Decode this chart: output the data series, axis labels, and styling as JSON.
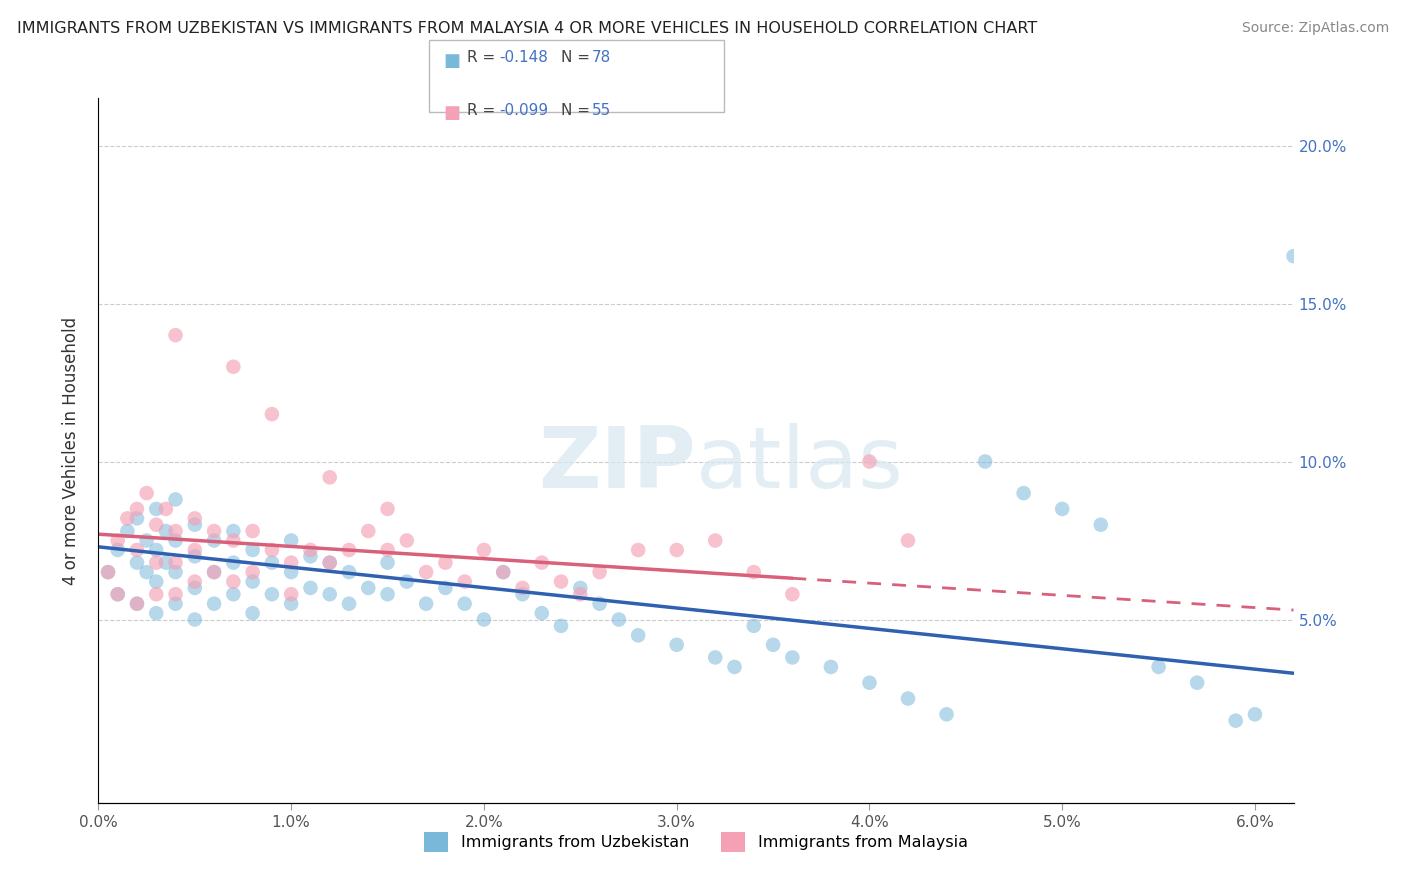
{
  "title": "IMMIGRANTS FROM UZBEKISTAN VS IMMIGRANTS FROM MALAYSIA 4 OR MORE VEHICLES IN HOUSEHOLD CORRELATION CHART",
  "source": "Source: ZipAtlas.com",
  "ylabel": "4 or more Vehicles in Household",
  "uzbekistan_color": "#7ab8d9",
  "malaysia_color": "#f4a0b5",
  "xmin": 0.0,
  "xmax": 0.062,
  "ymin": -0.008,
  "ymax": 0.215,
  "gridline_y": [
    0.05,
    0.1,
    0.15,
    0.2
  ],
  "ytick_labels": [
    "5.0%",
    "10.0%",
    "15.0%",
    "20.0%"
  ],
  "xtick_values": [
    0.0,
    0.01,
    0.02,
    0.03,
    0.04,
    0.05,
    0.06
  ],
  "xtick_labels": [
    "0.0%",
    "1.0%",
    "2.0%",
    "3.0%",
    "4.0%",
    "5.0%",
    "6.0%"
  ],
  "watermark": "ZIPatlas",
  "trendline_uzbekistan_x0": 0.0,
  "trendline_uzbekistan_y0": 0.073,
  "trendline_uzbekistan_x1": 0.062,
  "trendline_uzbekistan_y1": 0.033,
  "trendline_malaysia_x0": 0.0,
  "trendline_malaysia_y0": 0.077,
  "trendline_malaysia_x1": 0.062,
  "trendline_malaysia_y1": 0.053,
  "trendline_malaysia_solid_end": 0.036,
  "uzbekistan_x": [
    0.0005,
    0.001,
    0.001,
    0.0015,
    0.002,
    0.002,
    0.002,
    0.0025,
    0.0025,
    0.003,
    0.003,
    0.003,
    0.003,
    0.0035,
    0.0035,
    0.004,
    0.004,
    0.004,
    0.004,
    0.005,
    0.005,
    0.005,
    0.005,
    0.006,
    0.006,
    0.006,
    0.007,
    0.007,
    0.007,
    0.008,
    0.008,
    0.008,
    0.009,
    0.009,
    0.01,
    0.01,
    0.01,
    0.011,
    0.011,
    0.012,
    0.012,
    0.013,
    0.013,
    0.014,
    0.015,
    0.015,
    0.016,
    0.017,
    0.018,
    0.019,
    0.02,
    0.021,
    0.022,
    0.023,
    0.024,
    0.025,
    0.026,
    0.027,
    0.028,
    0.03,
    0.032,
    0.033,
    0.034,
    0.035,
    0.036,
    0.038,
    0.04,
    0.042,
    0.044,
    0.046,
    0.048,
    0.05,
    0.052,
    0.055,
    0.057,
    0.059,
    0.06,
    0.062
  ],
  "uzbekistan_y": [
    0.065,
    0.072,
    0.058,
    0.078,
    0.068,
    0.082,
    0.055,
    0.075,
    0.065,
    0.085,
    0.072,
    0.062,
    0.052,
    0.078,
    0.068,
    0.088,
    0.075,
    0.065,
    0.055,
    0.08,
    0.07,
    0.06,
    0.05,
    0.075,
    0.065,
    0.055,
    0.078,
    0.068,
    0.058,
    0.072,
    0.062,
    0.052,
    0.068,
    0.058,
    0.075,
    0.065,
    0.055,
    0.07,
    0.06,
    0.068,
    0.058,
    0.065,
    0.055,
    0.06,
    0.068,
    0.058,
    0.062,
    0.055,
    0.06,
    0.055,
    0.05,
    0.065,
    0.058,
    0.052,
    0.048,
    0.06,
    0.055,
    0.05,
    0.045,
    0.042,
    0.038,
    0.035,
    0.048,
    0.042,
    0.038,
    0.035,
    0.03,
    0.025,
    0.02,
    0.1,
    0.09,
    0.085,
    0.08,
    0.035,
    0.03,
    0.018,
    0.02,
    0.165
  ],
  "malaysia_x": [
    0.0005,
    0.001,
    0.001,
    0.0015,
    0.002,
    0.002,
    0.002,
    0.0025,
    0.003,
    0.003,
    0.003,
    0.0035,
    0.004,
    0.004,
    0.004,
    0.005,
    0.005,
    0.005,
    0.006,
    0.006,
    0.007,
    0.007,
    0.008,
    0.008,
    0.009,
    0.01,
    0.01,
    0.011,
    0.012,
    0.013,
    0.014,
    0.015,
    0.016,
    0.017,
    0.018,
    0.019,
    0.02,
    0.021,
    0.022,
    0.023,
    0.024,
    0.025,
    0.026,
    0.028,
    0.03,
    0.032,
    0.034,
    0.036,
    0.04,
    0.042,
    0.004,
    0.007,
    0.009,
    0.012,
    0.015
  ],
  "malaysia_y": [
    0.065,
    0.075,
    0.058,
    0.082,
    0.072,
    0.085,
    0.055,
    0.09,
    0.08,
    0.068,
    0.058,
    0.085,
    0.078,
    0.068,
    0.058,
    0.082,
    0.072,
    0.062,
    0.078,
    0.065,
    0.075,
    0.062,
    0.078,
    0.065,
    0.072,
    0.068,
    0.058,
    0.072,
    0.068,
    0.072,
    0.078,
    0.072,
    0.075,
    0.065,
    0.068,
    0.062,
    0.072,
    0.065,
    0.06,
    0.068,
    0.062,
    0.058,
    0.065,
    0.072,
    0.072,
    0.075,
    0.065,
    0.058,
    0.1,
    0.075,
    0.14,
    0.13,
    0.115,
    0.095,
    0.085
  ]
}
